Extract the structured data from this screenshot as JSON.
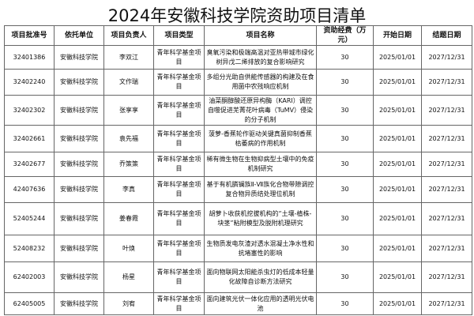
{
  "title": "2024年安徽科技学院资助项目清单",
  "headers": [
    "项目批准号",
    "依托单位",
    "项目负责人",
    "项目类型",
    "项目名称",
    "资助经费（万元）",
    "开始日期",
    "结题日期"
  ],
  "rows": [
    [
      "32401386",
      "安徽科技学院",
      "李双江",
      "青年科学基金项目",
      "臭氧污染和极端高温对亚热带城市绿化树异戊二烯排放的复合影响研究",
      "30",
      "2025/01/01",
      "2027/12/31"
    ],
    [
      "32402240",
      "安徽科技学院",
      "文作瑞",
      "青年科学基金项目",
      "多组分光助自供能传感器的构建及在食用菌中农残响应机制",
      "30",
      "2025/01/01",
      "2027/12/31"
    ],
    [
      "32402302",
      "安徽科技学院",
      "张享享",
      "青年科学基金项目",
      "油菜酮醇酸还原异构酶（KARI）调控自噬促进芜菁花叶病毒（TuMV）侵染的分子机制",
      "30",
      "2025/01/01",
      "2027/12/31"
    ],
    [
      "32402661",
      "安徽科技学院",
      "袁先福",
      "青年科学基金项目",
      "菠萝-香蕉轮作驱动关键真菌抑制香蕉枯萎病的作用机制",
      "30",
      "2025/01/01",
      "2027/12/31"
    ],
    [
      "32402677",
      "安徽科技学院",
      "乔策策",
      "青年科学基金项目",
      "稀有微生物在生物抑病型土壤中的免疫机制研究",
      "30",
      "2025/01/01",
      "2027/12/31"
    ],
    [
      "42407636",
      "安徽科技学院",
      "李真",
      "青年科学基金项目",
      "基于有机膦镧族Ⅱ-Ⅶ族化合物带隙调控复合物异质结处理位机制",
      "30",
      "2025/01/01",
      "2027/12/31"
    ],
    [
      "52405244",
      "安徽科技学院",
      "姜春霞",
      "青年科学基金项目",
      "胡萝卜收获机挖拔机构的“土壤-植株-块茎”粘附模型及脱附机理研究",
      "30",
      "2025/01/01",
      "2027/12/31"
    ],
    [
      "52408232",
      "安徽科技学院",
      "叶焕",
      "青年科学基金项目",
      "生物质发电灰渣对透水混凝土净水性和抗堵塞性的影响",
      "30",
      "2025/01/01",
      "2027/12/31"
    ],
    [
      "62402003",
      "安徽科技学院",
      "杨星",
      "青年科学基金项目",
      "面向物联网太阳能杀虫灯的低成本轻量化故障自诊断方法研究",
      "30",
      "2025/01/01",
      "2027/12/31"
    ],
    [
      "62405005",
      "安徽科技学院",
      "刘宥",
      "青年科学基金项目",
      "面向建筑光伏一体化应用的透明光伏电池",
      "30",
      "2025/01/01",
      "2027/12/31"
    ]
  ]
}
